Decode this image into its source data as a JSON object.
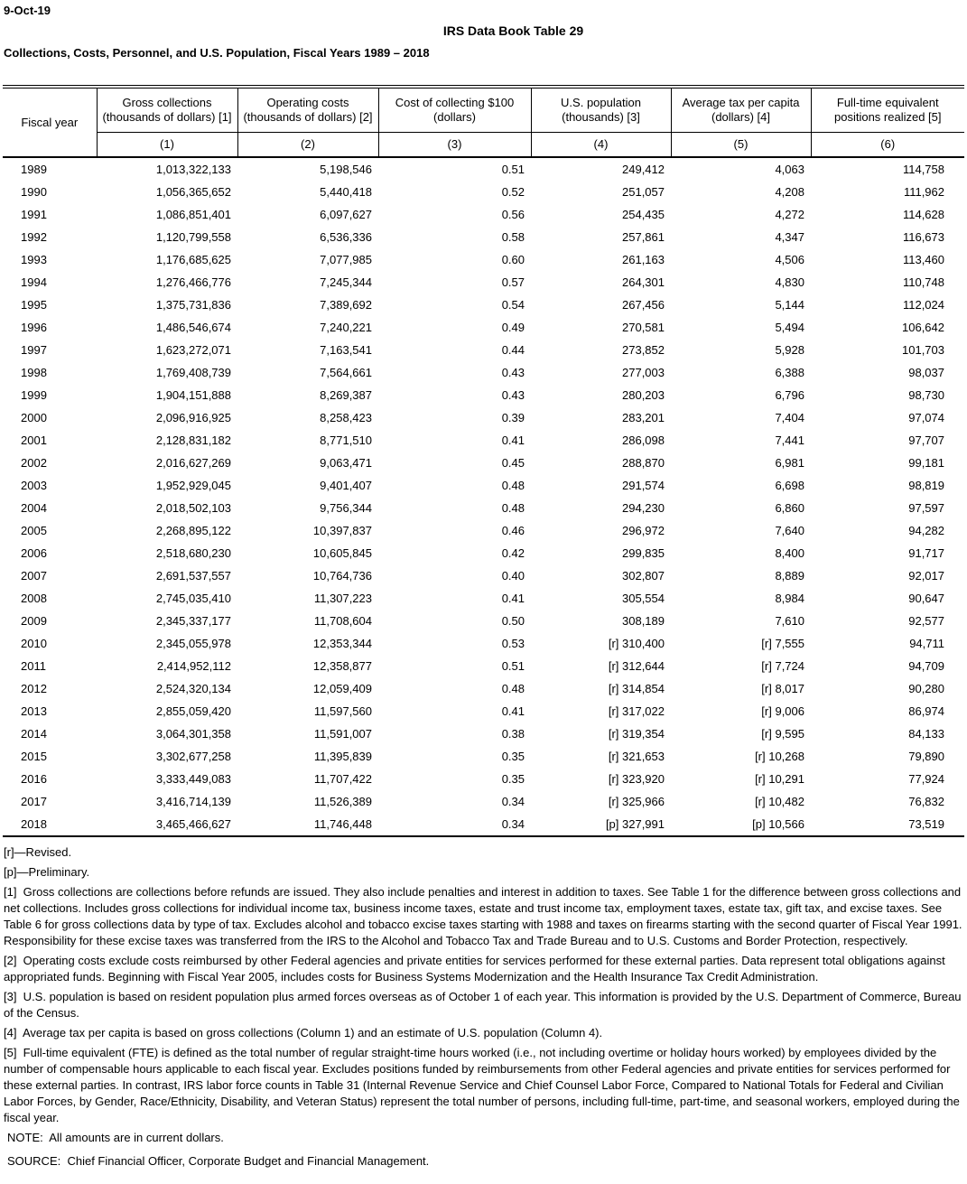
{
  "meta": {
    "date": "9-Oct-19"
  },
  "header": {
    "title": "IRS Data Book Table 29",
    "subtitle": "Collections, Costs, Personnel, and U.S. Population, Fiscal Years 1989 – 2018"
  },
  "table": {
    "columns": [
      {
        "label": "Fiscal year",
        "sub": "",
        "num": ""
      },
      {
        "label": "Gross collections",
        "sub": "(thousands of dollars) [1]",
        "num": "(1)"
      },
      {
        "label": "Operating costs",
        "sub": "(thousands of dollars) [2]",
        "num": "(2)"
      },
      {
        "label": "Cost of collecting $100",
        "sub": "(dollars)",
        "num": "(3)"
      },
      {
        "label": "U.S. population",
        "sub": "(thousands) [3]",
        "num": "(4)"
      },
      {
        "label": "Average tax per capita",
        "sub": "(dollars) [4]",
        "num": "(5)"
      },
      {
        "label": "Full-time equivalent",
        "sub": "positions realized [5]",
        "num": "(6)"
      }
    ],
    "rows": [
      [
        "1989",
        "1,013,322,133",
        "5,198,546",
        "0.51",
        "249,412",
        "4,063",
        "114,758"
      ],
      [
        "1990",
        "1,056,365,652",
        "5,440,418",
        "0.52",
        "251,057",
        "4,208",
        "111,962"
      ],
      [
        "1991",
        "1,086,851,401",
        "6,097,627",
        "0.56",
        "254,435",
        "4,272",
        "114,628"
      ],
      [
        "1992",
        "1,120,799,558",
        "6,536,336",
        "0.58",
        "257,861",
        "4,347",
        "116,673"
      ],
      [
        "1993",
        "1,176,685,625",
        "7,077,985",
        "0.60",
        "261,163",
        "4,506",
        "113,460"
      ],
      [
        "1994",
        "1,276,466,776",
        "7,245,344",
        "0.57",
        "264,301",
        "4,830",
        "110,748"
      ],
      [
        "1995",
        "1,375,731,836",
        "7,389,692",
        "0.54",
        "267,456",
        "5,144",
        "112,024"
      ],
      [
        "1996",
        "1,486,546,674",
        "7,240,221",
        "0.49",
        "270,581",
        "5,494",
        "106,642"
      ],
      [
        "1997",
        "1,623,272,071",
        "7,163,541",
        "0.44",
        "273,852",
        "5,928",
        "101,703"
      ],
      [
        "1998",
        "1,769,408,739",
        "7,564,661",
        "0.43",
        "277,003",
        "6,388",
        "98,037"
      ],
      [
        "1999",
        "1,904,151,888",
        "8,269,387",
        "0.43",
        "280,203",
        "6,796",
        "98,730"
      ],
      [
        "2000",
        "2,096,916,925",
        "8,258,423",
        "0.39",
        "283,201",
        "7,404",
        "97,074"
      ],
      [
        "2001",
        "2,128,831,182",
        "8,771,510",
        "0.41",
        "286,098",
        "7,441",
        "97,707"
      ],
      [
        "2002",
        "2,016,627,269",
        "9,063,471",
        "0.45",
        "288,870",
        "6,981",
        "99,181"
      ],
      [
        "2003",
        "1,952,929,045",
        "9,401,407",
        "0.48",
        "291,574",
        "6,698",
        "98,819"
      ],
      [
        "2004",
        "2,018,502,103",
        "9,756,344",
        "0.48",
        "294,230",
        "6,860",
        "97,597"
      ],
      [
        "2005",
        "2,268,895,122",
        "10,397,837",
        "0.46",
        "296,972",
        "7,640",
        "94,282"
      ],
      [
        "2006",
        "2,518,680,230",
        "10,605,845",
        "0.42",
        "299,835",
        "8,400",
        "91,717"
      ],
      [
        "2007",
        "2,691,537,557",
        "10,764,736",
        "0.40",
        "302,807",
        "8,889",
        "92,017"
      ],
      [
        "2008",
        "2,745,035,410",
        "11,307,223",
        "0.41",
        "305,554",
        "8,984",
        "90,647"
      ],
      [
        "2009",
        "2,345,337,177",
        "11,708,604",
        "0.50",
        "308,189",
        "7,610",
        "92,577"
      ],
      [
        "2010",
        "2,345,055,978",
        "12,353,344",
        "0.53",
        "[r] 310,400",
        "[r] 7,555",
        "94,711"
      ],
      [
        "2011",
        "2,414,952,112",
        "12,358,877",
        "0.51",
        "[r] 312,644",
        "[r] 7,724",
        "94,709"
      ],
      [
        "2012",
        "2,524,320,134",
        "12,059,409",
        "0.48",
        "[r] 314,854",
        "[r] 8,017",
        "90,280"
      ],
      [
        "2013",
        "2,855,059,420",
        "11,597,560",
        "0.41",
        "[r] 317,022",
        "[r] 9,006",
        "86,974"
      ],
      [
        "2014",
        "3,064,301,358",
        "11,591,007",
        "0.38",
        "[r] 319,354",
        "[r] 9,595",
        "84,133"
      ],
      [
        "2015",
        "3,302,677,258",
        "11,395,839",
        "0.35",
        "[r] 321,653",
        "[r] 10,268",
        "79,890"
      ],
      [
        "2016",
        "3,333,449,083",
        "11,707,422",
        "0.35",
        "[r] 323,920",
        "[r] 10,291",
        "77,924"
      ],
      [
        "2017",
        "3,416,714,139",
        "11,526,389",
        "0.34",
        "[r] 325,966",
        "[r] 10,482",
        "76,832"
      ],
      [
        "2018",
        "3,465,466,627",
        "11,746,448",
        "0.34",
        "[p] 327,991",
        "[p] 10,566",
        "73,519"
      ]
    ]
  },
  "footnotes": [
    "[r]—Revised.",
    "[p]—Preliminary.",
    "[1]  Gross collections are collections before refunds are issued. They also include penalties and interest in addition to taxes. See Table 1 for the difference between gross collections and net collections. Includes gross collections for individual income tax, business income taxes, estate and trust income tax, employment taxes, estate tax, gift tax, and excise taxes. See Table 6 for gross collections data by type of tax. Excludes alcohol and tobacco excise taxes starting with 1988 and taxes on firearms starting with the second quarter of Fiscal Year 1991. Responsibility for these excise taxes was transferred from the IRS to the Alcohol and Tobacco Tax and Trade Bureau and to U.S. Customs and Border Protection, respectively.",
    "[2]  Operating costs exclude costs reimbursed by other Federal agencies and private entities for services performed for these external parties. Data represent total obligations against appropriated funds. Beginning with Fiscal Year 2005, includes costs for Business Systems Modernization and the Health Insurance Tax Credit Administration.",
    "[3]  U.S. population is based on resident population plus armed forces overseas as of October 1 of each year. This information is provided by the U.S. Department of Commerce, Bureau of the Census.",
    "[4]  Average tax per capita is based on gross collections (Column 1) and an estimate of U.S. population (Column 4).",
    "[5]  Full-time equivalent (FTE) is defined as the total number of regular straight-time hours worked (i.e., not including overtime or holiday hours worked) by employees divided by the number of compensable hours applicable to each fiscal year. Excludes positions funded by reimbursements from other Federal agencies and private entities for services performed for these external parties. In contrast, IRS labor force counts in Table 31 (Internal Revenue Service and Chief Counsel Labor Force, Compared to National Totals for Federal and Civilian Labor Forces, by Gender, Race/Ethnicity, Disability, and Veteran Status) represent the total number of persons, including full-time, part-time, and seasonal workers, employed during the fiscal year."
  ],
  "note": "NOTE:  All amounts are in current dollars.",
  "source": "SOURCE:  Chief Financial Officer, Corporate Budget and Financial Management."
}
